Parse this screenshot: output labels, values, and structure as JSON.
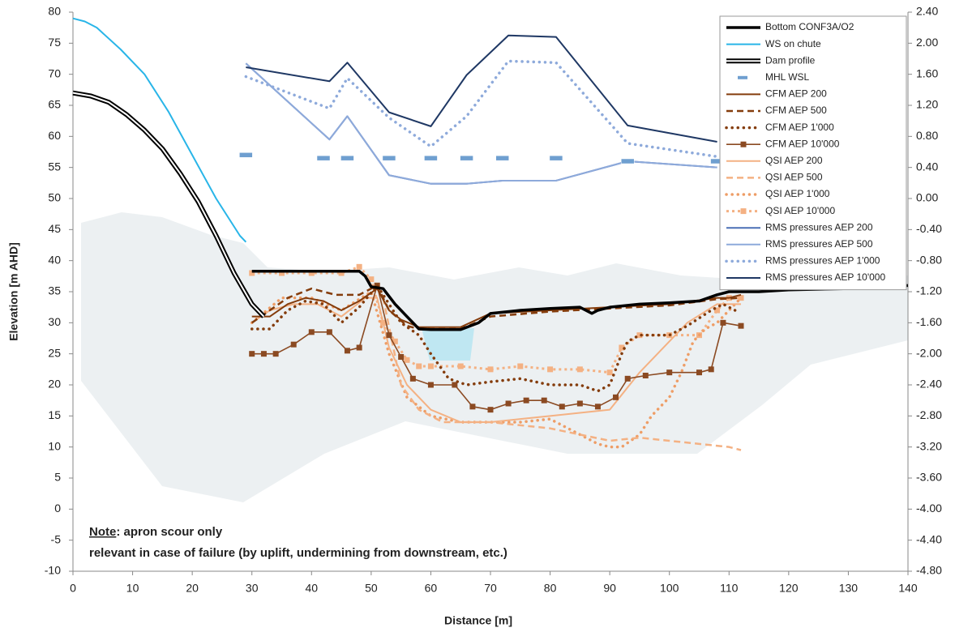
{
  "chart_data": {
    "type": "line",
    "x_label": "Distance [m]",
    "y_label": "Elevation [m AHD]",
    "xlim": [
      0,
      140
    ],
    "xticks": [
      0,
      10,
      20,
      30,
      40,
      50,
      60,
      70,
      80,
      90,
      100,
      110,
      120,
      130,
      140
    ],
    "ylim": [
      -10,
      80
    ],
    "yticks": [
      -10,
      -5,
      0,
      5,
      10,
      15,
      20,
      25,
      30,
      35,
      40,
      45,
      50,
      55,
      60,
      65,
      70,
      75,
      80
    ],
    "y2lim": [
      -4.8,
      2.4
    ],
    "y2ticks": [
      {
        "value": 2.4,
        "label": "2.40"
      },
      {
        "value": 2.0,
        "label": "2.00"
      },
      {
        "value": 1.6,
        "label": "1.60"
      },
      {
        "value": 1.2,
        "label": "1.20"
      },
      {
        "value": 0.8,
        "label": "0.80"
      },
      {
        "value": 0.4,
        "label": "0.40"
      },
      {
        "value": 0,
        "label": "0.00"
      },
      {
        "value": -0.4,
        "label": "-0.40"
      },
      {
        "value": -0.8,
        "label": "-0.80"
      },
      {
        "value": -1.2,
        "label": "-1.20"
      },
      {
        "value": -1.6,
        "label": "-1.60"
      },
      {
        "value": -2.0,
        "label": "-2.00"
      },
      {
        "value": -2.4,
        "label": "-2.40"
      },
      {
        "value": -2.8,
        "label": "-2.80"
      },
      {
        "value": -3.2,
        "label": "-3.20"
      },
      {
        "value": -3.6,
        "label": "-3.60"
      },
      {
        "value": -4.0,
        "label": "-4.00"
      },
      {
        "value": -4.4,
        "label": "-4.40"
      },
      {
        "value": -4.8,
        "label": "-4.80"
      }
    ],
    "legend": "upper right",
    "annotation": {
      "label": "Note",
      "lines": [
        ": apron scour only",
        "relevant in case of failure (by uplift, undermining from downstream, etc.)"
      ]
    },
    "series": [
      {
        "name": "Bottom CONF3A/O2",
        "color": "#000000",
        "style": "heavy",
        "x": [
          30,
          48,
          49,
          50,
          52,
          54,
          56,
          58,
          60,
          65,
          68,
          70,
          75,
          80,
          85,
          87,
          88,
          90,
          95,
          100,
          105,
          108,
          110,
          115,
          120,
          130,
          140
        ],
        "values": [
          38.3,
          38.3,
          37.5,
          35.8,
          35.5,
          33,
          31,
          29,
          28.9,
          28.9,
          30,
          31.5,
          32,
          32.3,
          32.5,
          31.5,
          32,
          32.5,
          33,
          33.2,
          33.5,
          34.5,
          35,
          35,
          35.3,
          35.5,
          36
        ]
      },
      {
        "name": "WS on chute",
        "color": "#29b5e8",
        "style": "solid",
        "x": [
          0,
          2,
          4,
          8,
          12,
          16,
          20,
          24,
          28,
          29
        ],
        "values": [
          79,
          78.5,
          77.5,
          74,
          70,
          64,
          57,
          50,
          44,
          43
        ]
      },
      {
        "name": "Dam profile",
        "color": "#000000",
        "style": "double",
        "x": [
          0,
          3,
          6,
          9,
          12,
          15,
          18,
          21,
          24,
          27,
          30,
          32
        ],
        "values": [
          67,
          66.5,
          65.5,
          63.5,
          61,
          58,
          54,
          49.5,
          44,
          38,
          33,
          31
        ]
      },
      {
        "name": "MHL WSL",
        "color": "#6f9fd0",
        "style": "dash-marker",
        "x": [
          29,
          42,
          46,
          53,
          60,
          66,
          72,
          81,
          93,
          108
        ],
        "values": [
          57,
          56.5,
          56.5,
          56.5,
          56.5,
          56.5,
          56.5,
          56.5,
          56,
          56
        ]
      },
      {
        "name": "CFM AEP 200",
        "color": "#843c0c",
        "style": "solid",
        "x": [
          30,
          33,
          36,
          39,
          42,
          45,
          48,
          51,
          53,
          55,
          58,
          60,
          65,
          70,
          80,
          90,
          100,
          108,
          110,
          112
        ],
        "values": [
          31,
          31,
          33,
          34,
          33.5,
          32,
          33.5,
          35.5,
          32,
          30.5,
          29.3,
          29.3,
          29.3,
          31.5,
          32,
          32.5,
          33,
          34,
          34,
          34.5
        ]
      },
      {
        "name": "CFM AEP 500",
        "color": "#843c0c",
        "style": "dash",
        "x": [
          30,
          33,
          36,
          40,
          44,
          48,
          51,
          53,
          56,
          58,
          65,
          70,
          80,
          90,
          100,
          108,
          112
        ],
        "values": [
          30,
          32,
          34,
          35.5,
          34.5,
          34.5,
          36,
          32,
          29.5,
          29,
          29,
          31,
          31.8,
          32.3,
          32.8,
          33.8,
          34
        ]
      },
      {
        "name": "CFM AEP 1'000",
        "color": "#843c0c",
        "style": "dot",
        "x": [
          30,
          33,
          36,
          39,
          42,
          45,
          48,
          51,
          53,
          55,
          58,
          60,
          63,
          66,
          70,
          75,
          80,
          85,
          88,
          90,
          92,
          93,
          95,
          100,
          103,
          107,
          109,
          111
        ],
        "values": [
          29,
          29,
          32,
          33.5,
          33,
          30,
          32.5,
          36,
          33,
          30,
          28,
          25,
          21,
          20,
          20.5,
          21,
          20,
          20,
          19,
          20,
          25,
          27,
          28,
          28,
          29.5,
          32,
          33,
          32
        ]
      },
      {
        "name": "CFM AEP 10'000",
        "color": "#8b4a22",
        "style": "solid-marker",
        "x": [
          30,
          32,
          34,
          37,
          40,
          43,
          46,
          48,
          51,
          53,
          55,
          57,
          60,
          64,
          67,
          70,
          73,
          76,
          79,
          82,
          85,
          88,
          91,
          93,
          96,
          100,
          105,
          107,
          109,
          112
        ],
        "values": [
          25,
          25,
          25,
          26.5,
          28.5,
          28.5,
          25.5,
          26,
          36,
          28,
          24.5,
          21,
          20,
          20,
          16.5,
          16,
          17,
          17.5,
          17.5,
          16.5,
          17,
          16.5,
          18,
          21,
          21.5,
          22,
          22,
          22.5,
          30,
          29.5
        ]
      },
      {
        "name": "QSI AEP 200",
        "color": "#f4b183",
        "style": "solid",
        "x": [
          30,
          33,
          37,
          41,
          45,
          49,
          51,
          53,
          56,
          60,
          65,
          70,
          75,
          80,
          85,
          90,
          95,
          100,
          103,
          108,
          112
        ],
        "values": [
          30,
          32,
          33,
          33,
          31,
          34,
          34,
          26,
          20,
          16,
          14,
          14,
          14.5,
          15,
          15.5,
          16,
          22,
          27,
          30,
          33,
          33
        ]
      },
      {
        "name": "QSI AEP 500",
        "color": "#f4b183",
        "style": "dash",
        "x": [
          52,
          55,
          58,
          62,
          70,
          80,
          85,
          90,
          95,
          100,
          105,
          110,
          112
        ],
        "values": [
          34,
          20,
          16,
          14,
          14,
          13,
          12,
          11,
          11.5,
          11,
          10.5,
          10,
          9.5
        ]
      },
      {
        "name": "QSI AEP 1'000",
        "color": "#ee9d66",
        "style": "dot",
        "x": [
          30,
          35,
          40,
          45,
          50,
          53,
          56,
          60,
          65,
          70,
          75,
          80,
          85,
          88,
          90,
          92,
          95,
          97,
          100,
          102,
          104,
          106,
          108,
          110,
          112
        ],
        "values": [
          30,
          34,
          34,
          32,
          35,
          25,
          18,
          15,
          14,
          14,
          14,
          14.5,
          12,
          10.5,
          10,
          10,
          12,
          15,
          18,
          22,
          27,
          29,
          30,
          32,
          34
        ]
      },
      {
        "name": "QSI AEP 10'000",
        "color": "#f4b183",
        "style": "dot-marker",
        "x": [
          30,
          35,
          40,
          45,
          48,
          50,
          52,
          54,
          56,
          58,
          60,
          65,
          70,
          75,
          80,
          85,
          90,
          92,
          95,
          100,
          105,
          108,
          110,
          112
        ],
        "values": [
          38,
          38,
          38,
          38,
          39,
          37,
          30,
          27,
          24,
          23,
          23,
          23,
          22.5,
          23,
          22.5,
          22.5,
          22,
          26,
          28,
          28,
          28,
          32,
          34,
          34
        ]
      },
      {
        "name": "RMS pressures AEP 200",
        "color": "#4a6fb5",
        "style": "solid",
        "axis": "y2",
        "x": [
          29,
          43,
          46,
          53,
          60,
          66,
          72,
          81,
          93,
          108
        ],
        "values": [
          1.74,
          0.76,
          1.06,
          0.3,
          0.19,
          0.19,
          0.23,
          0.23,
          0.48,
          0.4
        ]
      },
      {
        "name": "RMS pressures AEP 500",
        "color": "#8eaadb",
        "style": "solid",
        "axis": "y2",
        "x": [
          29,
          43,
          46,
          53,
          60,
          66,
          72,
          81,
          93,
          108
        ],
        "values": [
          1.74,
          0.76,
          1.06,
          0.3,
          0.19,
          0.19,
          0.23,
          0.23,
          0.48,
          0.4
        ]
      },
      {
        "name": "RMS pressures AEP 1'000",
        "color": "#8eaadb",
        "style": "dot",
        "axis": "y2",
        "x": [
          29,
          43,
          46,
          53,
          60,
          66,
          73,
          81,
          93,
          108
        ],
        "values": [
          1.57,
          1.16,
          1.55,
          1.04,
          0.67,
          1.06,
          1.77,
          1.75,
          0.71,
          0.54
        ]
      },
      {
        "name": "RMS pressures AEP 10'000",
        "color": "#1f3864",
        "style": "solid",
        "axis": "y2",
        "x": [
          29,
          43,
          46,
          53,
          60,
          66,
          73,
          81,
          93,
          108
        ],
        "values": [
          1.69,
          1.51,
          1.75,
          1.11,
          0.93,
          1.59,
          2.1,
          2.08,
          0.94,
          0.73
        ]
      }
    ]
  }
}
